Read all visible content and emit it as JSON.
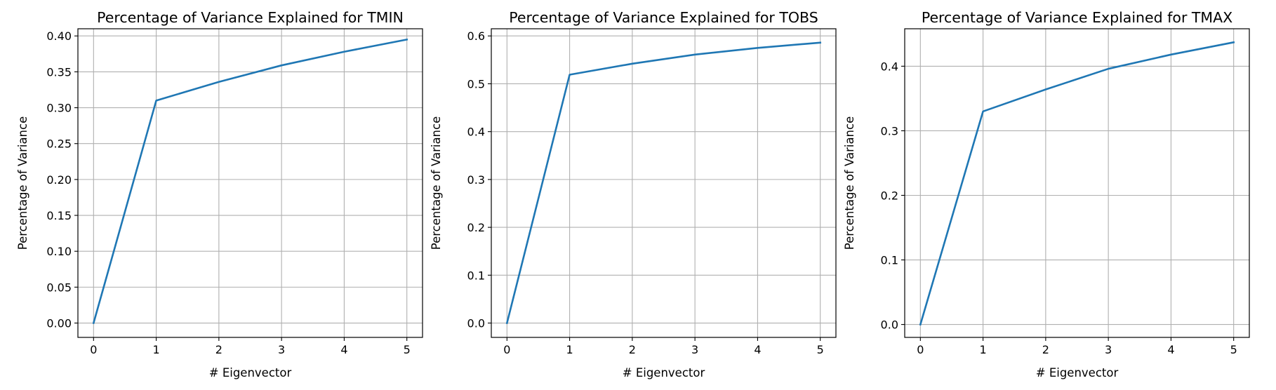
{
  "colors": {
    "line": "#1f77b4",
    "grid": "#b0b0b0",
    "axes": "#000000",
    "background": "#ffffff"
  },
  "chart_data": [
    {
      "type": "line",
      "title": "Percentage of Variance Explained for TMIN",
      "xlabel": "# Eigenvector",
      "ylabel": "Percentage of Variance",
      "grid": true,
      "x": [
        0,
        1,
        2,
        3,
        4,
        5
      ],
      "series": [
        {
          "values": [
            0.0,
            0.31,
            0.336,
            0.359,
            0.378,
            0.395
          ]
        }
      ],
      "xlim": [
        -0.25,
        5.25
      ],
      "ylim": [
        -0.02,
        0.41
      ],
      "xticks": [
        0,
        1,
        2,
        3,
        4,
        5
      ],
      "xtick_labels": [
        "0",
        "1",
        "2",
        "3",
        "4",
        "5"
      ],
      "yticks": [
        0.0,
        0.05,
        0.1,
        0.15,
        0.2,
        0.25,
        0.3,
        0.35,
        0.4
      ],
      "ytick_labels": [
        "0.00",
        "0.05",
        "0.10",
        "0.15",
        "0.20",
        "0.25",
        "0.30",
        "0.35",
        "0.40"
      ]
    },
    {
      "type": "line",
      "title": "Percentage of Variance Explained for TOBS",
      "xlabel": "# Eigenvector",
      "ylabel": "Percentage of Variance",
      "grid": true,
      "x": [
        0,
        1,
        2,
        3,
        4,
        5
      ],
      "series": [
        {
          "values": [
            0.0,
            0.519,
            0.542,
            0.561,
            0.575,
            0.586
          ]
        }
      ],
      "xlim": [
        -0.25,
        5.25
      ],
      "ylim": [
        -0.03,
        0.615
      ],
      "xticks": [
        0,
        1,
        2,
        3,
        4,
        5
      ],
      "xtick_labels": [
        "0",
        "1",
        "2",
        "3",
        "4",
        "5"
      ],
      "yticks": [
        0.0,
        0.1,
        0.2,
        0.3,
        0.4,
        0.5,
        0.6
      ],
      "ytick_labels": [
        "0.0",
        "0.1",
        "0.2",
        "0.3",
        "0.4",
        "0.5",
        "0.6"
      ]
    },
    {
      "type": "line",
      "title": "Percentage of Variance Explained for TMAX",
      "xlabel": "# Eigenvector",
      "ylabel": "Percentage of Variance",
      "grid": true,
      "x": [
        0,
        1,
        2,
        3,
        4,
        5
      ],
      "series": [
        {
          "values": [
            0.0,
            0.33,
            0.364,
            0.396,
            0.418,
            0.437
          ]
        }
      ],
      "xlim": [
        -0.25,
        5.25
      ],
      "ylim": [
        -0.02,
        0.458
      ],
      "xticks": [
        0,
        1,
        2,
        3,
        4,
        5
      ],
      "xtick_labels": [
        "0",
        "1",
        "2",
        "3",
        "4",
        "5"
      ],
      "yticks": [
        0.0,
        0.1,
        0.2,
        0.3,
        0.4
      ],
      "ytick_labels": [
        "0.0",
        "0.1",
        "0.2",
        "0.3",
        "0.4"
      ]
    }
  ]
}
